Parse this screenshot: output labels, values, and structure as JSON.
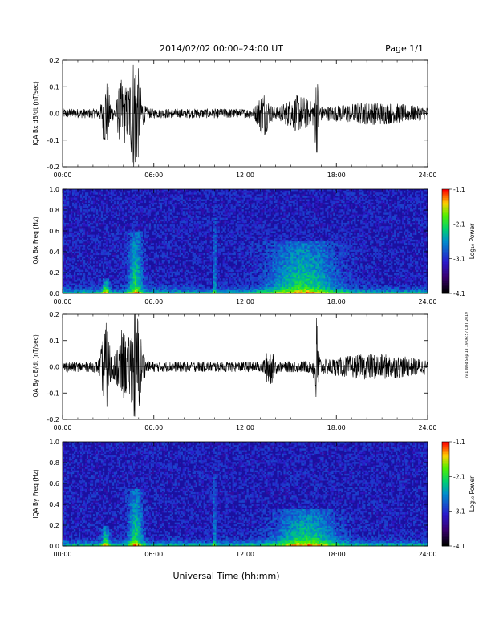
{
  "header": {
    "title": "2014/02/02  00:00–24:00 UT",
    "page": "Page 1/1"
  },
  "footer": {
    "xlabel": "Universal Time (hh:mm)",
    "stamp": "ns1 Wed Sep 18 19:06:57 CDT 2019"
  },
  "colorbar": {
    "label": "Log₁₀ Power",
    "ticks": [
      "-1.1",
      "-2.1",
      "-3.1",
      "-4.1"
    ]
  },
  "chart_data": [
    {
      "type": "line",
      "ylabel": "IQA Bx dB/dt (nT/sec)",
      "xlim": [
        0,
        24
      ],
      "ylim": [
        -0.2,
        0.2
      ],
      "xticks": [
        "00:00",
        "06:00",
        "12:00",
        "18:00",
        "24:00"
      ],
      "yticks": [
        "0.2",
        "0.1",
        "0.0",
        "-0.1",
        "-0.2"
      ],
      "baseline_amplitude": 0.018,
      "bursts": [
        {
          "t": 2.85,
          "w": 0.25,
          "amp": 0.12
        },
        {
          "t": 3.9,
          "w": 0.35,
          "amp": 0.11
        },
        {
          "t": 4.75,
          "w": 0.4,
          "amp": 0.22
        },
        {
          "t": 13.2,
          "w": 0.4,
          "amp": 0.07
        },
        {
          "t": 15.5,
          "w": 1.0,
          "amp": 0.05
        },
        {
          "t": 16.7,
          "w": 0.15,
          "amp": 0.12
        },
        {
          "t": 20.5,
          "w": 3.0,
          "amp": 0.025
        }
      ]
    },
    {
      "type": "heatmap",
      "ylabel": "IQA Bx Freq (Hz)",
      "xlim": [
        0,
        24
      ],
      "ylim": [
        0,
        1.0
      ],
      "xticks": [
        "00:00",
        "06:00",
        "12:00",
        "18:00",
        "24:00"
      ],
      "yticks": [
        "1.0",
        "0.8",
        "0.6",
        "0.4",
        "0.2",
        "0.0"
      ],
      "zlim": [
        -4.1,
        -1.1
      ],
      "features": [
        {
          "t": 2.85,
          "w": 0.25,
          "fmax": 0.15
        },
        {
          "t": 4.8,
          "w": 0.45,
          "fmax": 0.6
        },
        {
          "t": 10.0,
          "w": 0.06,
          "fmax": 0.75
        },
        {
          "t": 15.8,
          "w": 2.2,
          "fmax": 0.5
        }
      ]
    },
    {
      "type": "line",
      "ylabel": "IQA By dB/dt (nT/sec)",
      "xlim": [
        0,
        24
      ],
      "ylim": [
        -0.2,
        0.2
      ],
      "xticks": [
        "00:00",
        "06:00",
        "12:00",
        "18:00",
        "24:00"
      ],
      "yticks": [
        "0.2",
        "0.1",
        "0.0",
        "-0.1",
        "-0.2"
      ],
      "baseline_amplitude": 0.02,
      "bursts": [
        {
          "t": 2.85,
          "w": 0.3,
          "amp": 0.15
        },
        {
          "t": 3.9,
          "w": 0.4,
          "amp": 0.12
        },
        {
          "t": 4.8,
          "w": 0.4,
          "amp": 0.22
        },
        {
          "t": 13.6,
          "w": 0.3,
          "amp": 0.06
        },
        {
          "t": 16.7,
          "w": 0.15,
          "amp": 0.18
        },
        {
          "t": 20.5,
          "w": 3.0,
          "amp": 0.03
        }
      ]
    },
    {
      "type": "heatmap",
      "ylabel": "IQA By Freq (Hz)",
      "xlim": [
        0,
        24
      ],
      "ylim": [
        0,
        1.0
      ],
      "xticks": [
        "00:00",
        "06:00",
        "12:00",
        "18:00",
        "24:00"
      ],
      "yticks": [
        "1.0",
        "0.8",
        "0.6",
        "0.4",
        "0.2",
        "0.0"
      ],
      "zlim": [
        -4.1,
        -1.1
      ],
      "features": [
        {
          "t": 2.85,
          "w": 0.25,
          "fmax": 0.2
        },
        {
          "t": 4.8,
          "w": 0.45,
          "fmax": 0.55
        },
        {
          "t": 10.0,
          "w": 0.06,
          "fmax": 0.7
        },
        {
          "t": 16.0,
          "w": 2.0,
          "fmax": 0.35
        }
      ]
    }
  ]
}
